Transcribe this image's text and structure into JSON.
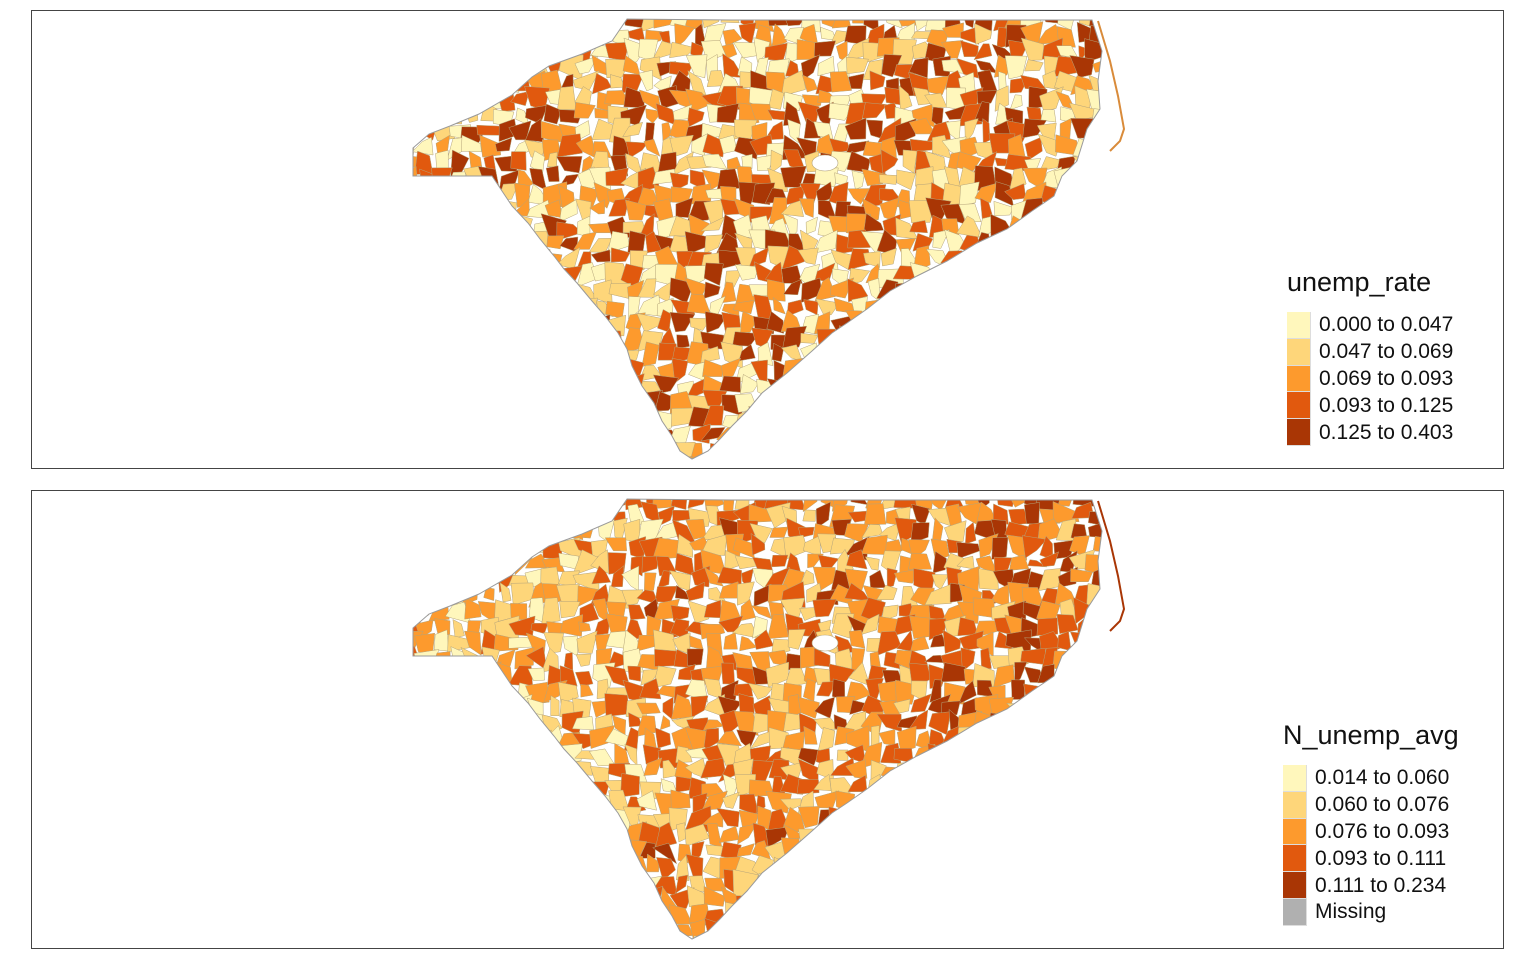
{
  "maps": [
    {
      "legend": {
        "title": "unemp_rate",
        "items": [
          {
            "label": "0.000 to 0.047",
            "color": "#FFF7BC"
          },
          {
            "label": "0.047 to 0.069",
            "color": "#FED67A"
          },
          {
            "label": "0.069 to 0.093",
            "color": "#FD9A2D"
          },
          {
            "label": "0.093 to 0.125",
            "color": "#E1590E"
          },
          {
            "label": "0.125 to 0.403",
            "color": "#A93605"
          }
        ]
      }
    },
    {
      "legend": {
        "title": "N_unemp_avg",
        "items": [
          {
            "label": "0.014 to 0.060",
            "color": "#FFF7BC"
          },
          {
            "label": "0.060 to 0.076",
            "color": "#FED67A"
          },
          {
            "label": "0.076 to 0.093",
            "color": "#FD9A2D"
          },
          {
            "label": "0.093 to 0.111",
            "color": "#E1590E"
          },
          {
            "label": "0.111 to 0.234",
            "color": "#A93605"
          },
          {
            "label": "Missing",
            "color": "#B0B0B0"
          }
        ]
      }
    }
  ]
}
